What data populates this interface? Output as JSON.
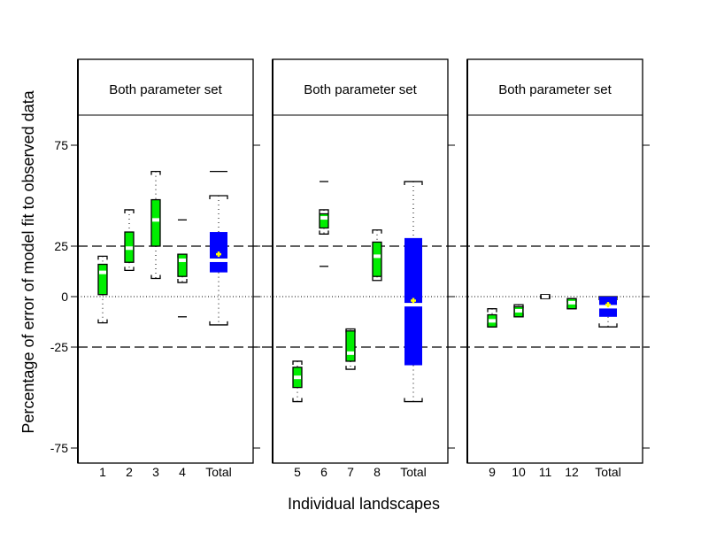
{
  "chart_data": {
    "type": "boxplot",
    "ylabel": "Percentage of error of model fit to observed data",
    "xlabel": "Individual landscapes",
    "ylim": [
      -80,
      95
    ],
    "yticks": [
      75,
      25,
      0,
      -25,
      -75
    ],
    "reference_lines": {
      "dashed": [
        25,
        -25
      ],
      "dotted": [
        0
      ]
    },
    "colors": {
      "landscape_box": "#00ee00",
      "total_box": "#0000ff",
      "median": "#ffffff",
      "mean_marker": "#ffff00"
    },
    "panels": [
      {
        "title": "Both parameter set",
        "boxes": [
          {
            "label": "1",
            "whisker_low": -13,
            "q1": 1,
            "median": 12,
            "q3": 16,
            "whisker_high": 20,
            "outliers": []
          },
          {
            "label": "2",
            "whisker_low": 13,
            "q1": 17,
            "median": 24,
            "q3": 32,
            "whisker_high": 43,
            "outliers": []
          },
          {
            "label": "3",
            "whisker_low": 9,
            "q1": 25,
            "median": 38,
            "q3": 48,
            "whisker_high": 62,
            "outliers": []
          },
          {
            "label": "4",
            "whisker_low": 7,
            "q1": 10,
            "median": 18,
            "q3": 21,
            "whisker_high": 21,
            "outliers": [
              38,
              -10
            ]
          },
          {
            "label": "Total",
            "total": true,
            "whisker_low": -14,
            "q1": 12,
            "median": 18,
            "q3": 32,
            "whisker_high": 50,
            "mean": 21,
            "outliers": [
              62
            ]
          }
        ]
      },
      {
        "title": "Both parameter set",
        "boxes": [
          {
            "label": "5",
            "whisker_low": -52,
            "q1": -45,
            "median": -40,
            "q3": -35,
            "whisker_high": -32,
            "outliers": []
          },
          {
            "label": "6",
            "whisker_low": 31,
            "q1": 34,
            "median": 39,
            "q3": 41,
            "whisker_high": 43,
            "outliers": [
              57,
              15
            ]
          },
          {
            "label": "7",
            "whisker_low": -36,
            "q1": -32,
            "median": -28,
            "q3": -17,
            "whisker_high": -16,
            "outliers": []
          },
          {
            "label": "8",
            "whisker_low": 8,
            "q1": 10,
            "median": 20,
            "q3": 27,
            "whisker_high": 33,
            "outliers": []
          },
          {
            "label": "Total",
            "total": true,
            "whisker_low": -52,
            "q1": -34,
            "median": -4,
            "q3": 29,
            "whisker_high": 57,
            "mean": -2,
            "outliers": []
          }
        ]
      },
      {
        "title": "Both parameter set",
        "boxes": [
          {
            "label": "9",
            "whisker_low": -15,
            "q1": -15,
            "median": -12,
            "q3": -9,
            "whisker_high": -6,
            "outliers": []
          },
          {
            "label": "10",
            "whisker_low": -10,
            "q1": -10,
            "median": -7,
            "q3": -5,
            "whisker_high": -4,
            "outliers": []
          },
          {
            "label": "11",
            "whisker_low": -1,
            "q1": 0,
            "median": 0,
            "q3": 0,
            "whisker_high": 1,
            "outliers": []
          },
          {
            "label": "12",
            "whisker_low": -6,
            "q1": -6,
            "median": -3,
            "q3": -1,
            "whisker_high": -1,
            "outliers": []
          },
          {
            "label": "Total",
            "total": true,
            "whisker_low": -15,
            "q1": -10,
            "median": -5,
            "q3": 0,
            "whisker_high": 0,
            "mean": -4,
            "outliers": []
          }
        ]
      }
    ]
  }
}
